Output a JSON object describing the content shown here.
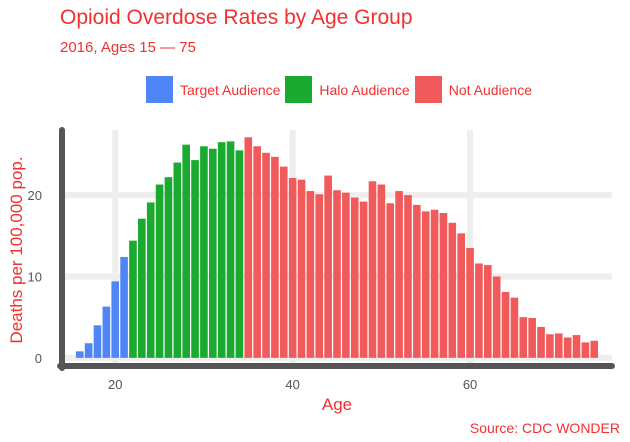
{
  "colors": {
    "text": "#f32f2f",
    "target": "#4f86f7",
    "halo": "#1aaa2f",
    "not": "#f15a5a",
    "grid": "#eeeeee",
    "axis": "#555555",
    "tick_text": "#555555"
  },
  "chart_data": {
    "type": "bar",
    "title": "Opioid Overdose Rates by Age Group",
    "subtitle": "2016, Ages 15 — 75",
    "xlabel": "Age",
    "ylabel": "Deaths per 100,000 pop.",
    "source": "Source: CDC WONDER",
    "x_ticks": [
      20,
      40,
      60
    ],
    "y_ticks": [
      0,
      10,
      20
    ],
    "x_tick_labels": [
      "20",
      "40",
      "60"
    ],
    "y_tick_labels": [
      "0",
      "10",
      "20"
    ],
    "xlim": [
      14,
      76
    ],
    "ylim": [
      -1,
      28
    ],
    "legend_position": "top",
    "series": [
      {
        "name": "Target Audience",
        "color_key": "target",
        "x": [
          15,
          16,
          17,
          18,
          19,
          20,
          21
        ],
        "values": [
          0,
          0.8,
          1.8,
          4.0,
          6.3,
          9.4,
          12.4
        ]
      },
      {
        "name": "Halo Audience",
        "color_key": "halo",
        "x": [
          22,
          23,
          24,
          25,
          26,
          27,
          28,
          29,
          30,
          31,
          32,
          33,
          34
        ],
        "values": [
          14.4,
          17.1,
          19.1,
          21.3,
          22.2,
          24.0,
          26.2,
          24.3,
          26.0,
          25.7,
          26.5,
          26.6,
          25.5
        ]
      },
      {
        "name": "Not Audience",
        "color_key": "not",
        "x": [
          35,
          36,
          37,
          38,
          39,
          40,
          41,
          42,
          43,
          44,
          45,
          46,
          47,
          48,
          49,
          50,
          51,
          52,
          53,
          54,
          55,
          56,
          57,
          58,
          59,
          60,
          61,
          62,
          63,
          64,
          65,
          66,
          67,
          68,
          69,
          70,
          71,
          72,
          73,
          74
        ],
        "values": [
          27.1,
          26.0,
          25.2,
          24.7,
          23.5,
          22.1,
          21.9,
          20.5,
          20.1,
          22.4,
          20.6,
          20.3,
          19.7,
          19.2,
          21.7,
          21.3,
          19.0,
          20.5,
          20.0,
          18.8,
          18.0,
          18.2,
          17.8,
          16.6,
          15.3,
          13.5,
          11.6,
          11.4,
          10.0,
          8.1,
          7.4,
          5.0,
          4.9,
          3.8,
          2.9,
          3.0,
          2.5,
          2.8,
          1.9,
          2.1
        ]
      }
    ]
  }
}
